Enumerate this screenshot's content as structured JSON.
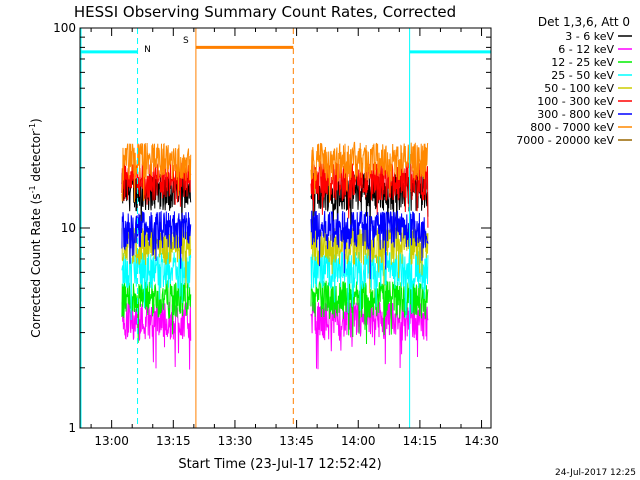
{
  "chart_data": {
    "type": "line",
    "title": "HESSI Observing Summary Count Rates, Corrected",
    "xlabel": "Start Time (23-Jul-17 12:52:42)",
    "ylabel_main": "Corrected Count Rate (s",
    "ylabel_sup1": "-1",
    "ylabel_mid": " detector",
    "ylabel_sup2": "-1",
    "ylabel_end": ")",
    "footer": "24-Jul-2017 12:25",
    "yscale": "log",
    "ylim": [
      1,
      100
    ],
    "xlim_minutes": [
      -7.7,
      92.3
    ],
    "x_ticks": [
      {
        "minute": 0,
        "label": "13:00"
      },
      {
        "minute": 15,
        "label": "13:15"
      },
      {
        "minute": 30,
        "label": "13:30"
      },
      {
        "minute": 45,
        "label": "13:45"
      },
      {
        "minute": 60,
        "label": "14:00"
      },
      {
        "minute": 75,
        "label": "14:15"
      },
      {
        "minute": 90,
        "label": "14:30"
      }
    ],
    "y_ticks": [
      {
        "value": 1,
        "label": "1"
      },
      {
        "value": 10,
        "label": "10"
      },
      {
        "value": 100,
        "label": "100"
      }
    ],
    "legend_title": "Det 1,3,6, Att 0",
    "legend_position": "top-right outside",
    "series": [
      {
        "name": "3 - 6 keV",
        "color": "#000000",
        "level": 15.5
      },
      {
        "name": "6 - 12 keV",
        "color": "#ff00ff",
        "level": 3.5
      },
      {
        "name": "12 - 25 keV",
        "color": "#00ee00",
        "level": 4.5
      },
      {
        "name": "25 - 50 keV",
        "color": "#00ffff",
        "level": 6.3
      },
      {
        "name": "50 - 100 keV",
        "color": "#cccc00",
        "level": 8.3
      },
      {
        "name": "100 - 300 keV",
        "color": "#ff0000",
        "level": 17.5
      },
      {
        "name": "300 - 800 keV",
        "color": "#0000ff",
        "level": 10.0
      },
      {
        "name": "800 - 7000 keV",
        "color": "#ff8800",
        "level": 22.0
      },
      {
        "name": "7000 - 20000 keV",
        "color": "#996600",
        "level": null
      }
    ],
    "data_intervals_minutes": [
      [
        2.5,
        19.3
      ],
      [
        48.5,
        77.0
      ]
    ],
    "annotations": {
      "night_label": "N",
      "saa_label": "S",
      "night_intervals": [
        [
          -7.7,
          6.3
        ],
        [
          72.5,
          92.3
        ]
      ],
      "saa_interval": [
        20.5,
        44.2
      ],
      "night_color": "#00ffff",
      "saa_color": "#ff8000"
    }
  }
}
